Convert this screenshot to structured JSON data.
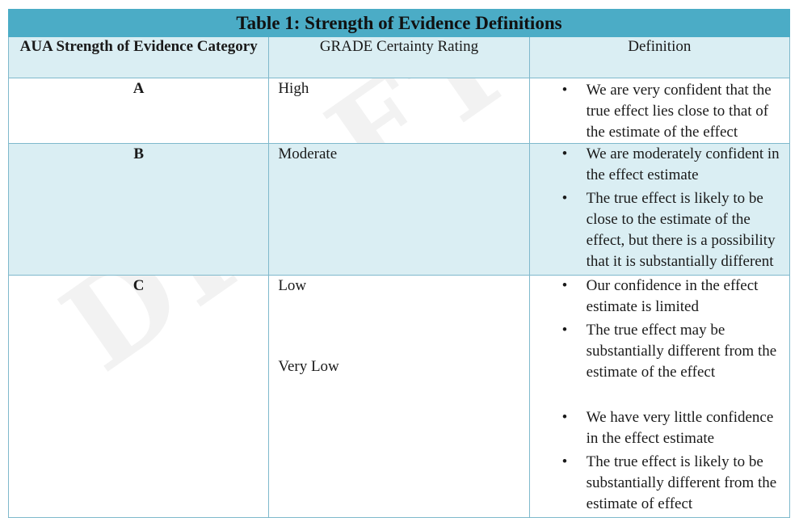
{
  "table": {
    "title": "Table 1: Strength of Evidence Definitions",
    "headers": {
      "category": "AUA Strength of Evidence Category",
      "grade": "GRADE Certainty Rating",
      "definition": "Definition"
    },
    "rows": [
      {
        "category": "A",
        "grades": [
          "High"
        ],
        "bullets": [
          "We are very confident that the true effect lies close to that of the estimate of the effect"
        ]
      },
      {
        "category": "B",
        "grades": [
          "Moderate"
        ],
        "bullets": [
          "We are moderately confident in the effect estimate",
          "The true effect is likely to be close to the estimate of the effect, but there is a possibility that it is substantially different"
        ]
      },
      {
        "category": "C",
        "grades": [
          "Low",
          "Very Low"
        ],
        "bullets_low": [
          "Our confidence in the effect estimate is limited",
          "The true effect may be substantially different from the estimate of the effect"
        ],
        "bullets_very_low": [
          "We have very little confidence in the effect estimate",
          "The true effect is likely to be substantially different from the estimate of effect"
        ]
      }
    ]
  }
}
